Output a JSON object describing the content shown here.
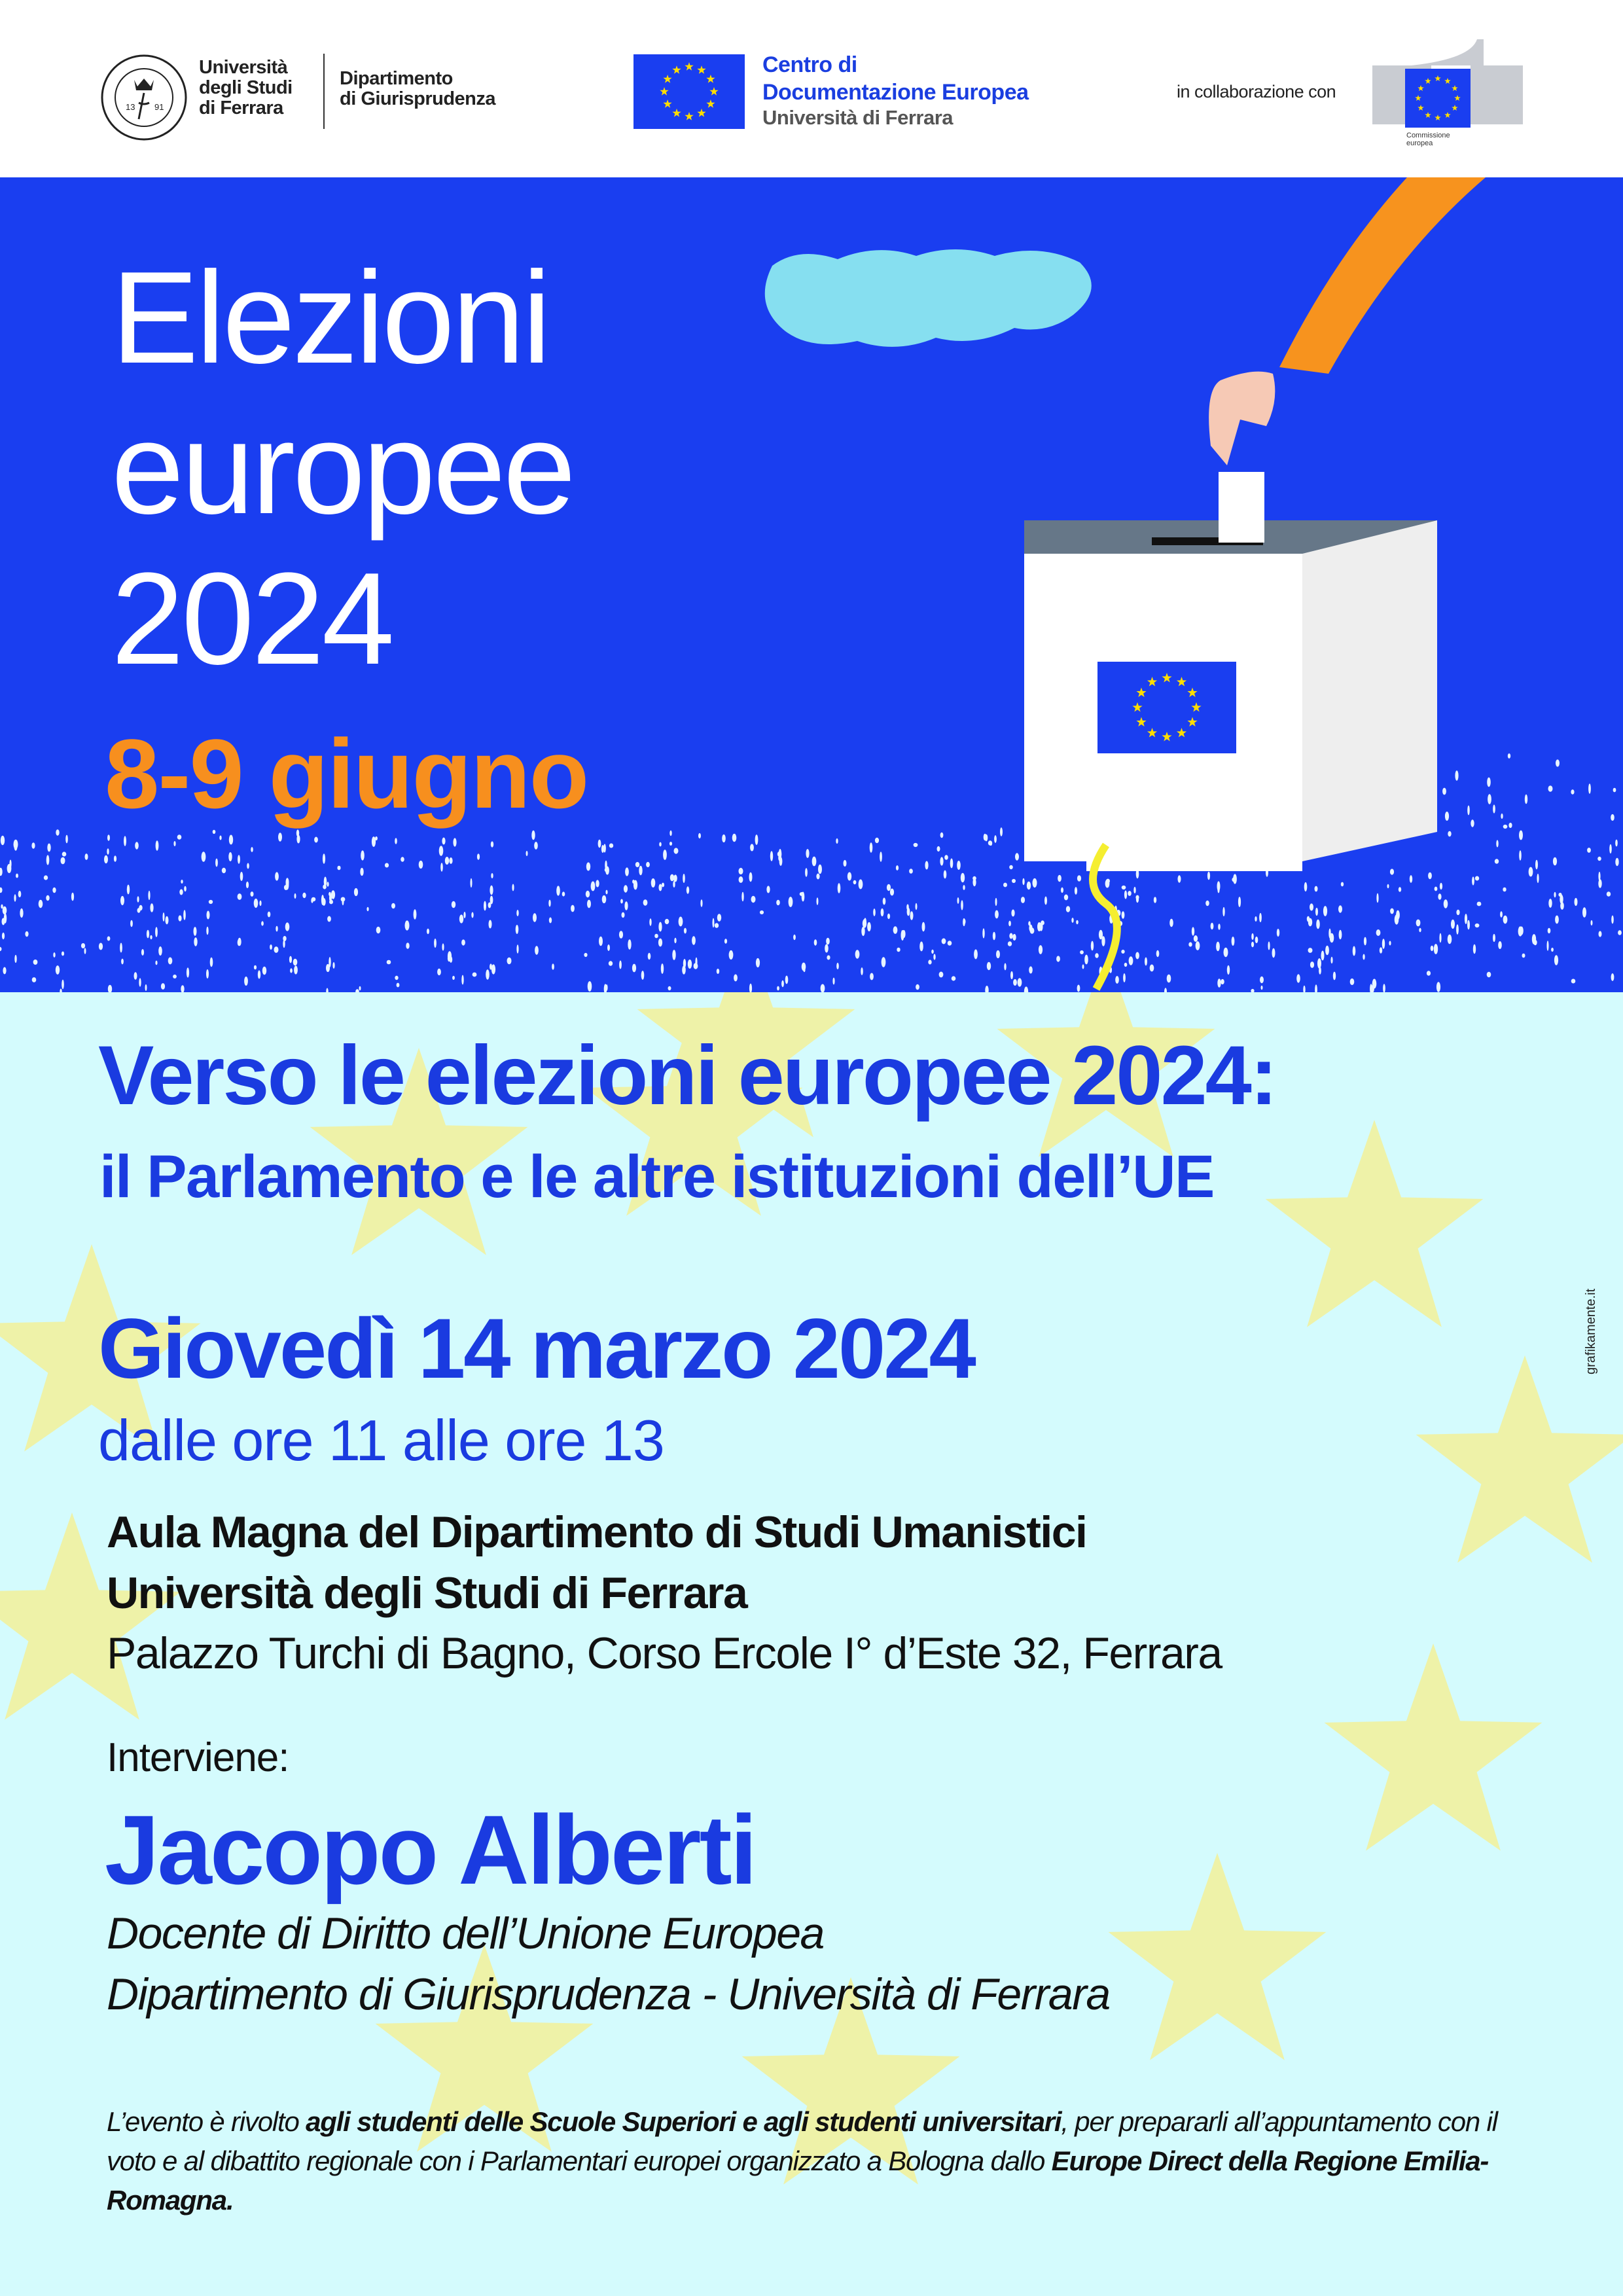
{
  "header": {
    "university": {
      "line1": "Università",
      "line2": "degli Studi",
      "line3": "di Ferrara",
      "seal_text": "FERRARIAE UNIVERSITAS · EX LABORE FRUCTUS · 1391"
    },
    "department": {
      "line1": "Dipartimento",
      "line2": "di Giurisprudenza"
    },
    "cde": {
      "line1": "Centro di",
      "line2": "Documentazione Europea",
      "line3": "Università di Ferrara"
    },
    "collab_label": "in collaborazione con",
    "commission": {
      "line1": "Commissione",
      "line2": "europea"
    }
  },
  "hero": {
    "title_line1": "Elezioni",
    "title_line2": "europee",
    "title_line3": "2024",
    "dates": "8-9 giugno"
  },
  "event": {
    "title": "Verso le elezioni europee 2024:",
    "subtitle": "il Parlamento e le altre istituzioni dell’UE",
    "date": "Giovedì 14 marzo 2024",
    "time": "dalle ore 11 alle ore 13",
    "venue_line1": "Aula Magna del Dipartimento di Studi Umanistici",
    "venue_line2": "Università degli Studi di Ferrara",
    "address": "Palazzo Turchi di Bagno, Corso Ercole I° d’Este 32, Ferrara",
    "speaker_label": "Interviene:",
    "speaker_name": "Jacopo Alberti",
    "speaker_role1": "Docente di Diritto dell’Unione Europea",
    "speaker_role2": "Dipartimento di Giurisprudenza - Università di Ferrara"
  },
  "footer": {
    "part1": "L’evento è rivolto ",
    "part2": "agli studenti delle Scuole Superiori e agli studenti universitari",
    "part3": ", per prepararli all’appuntamento con il voto e al dibattito regionale con i Parlamentari europei organizzato a Bologna dallo ",
    "part4": "Europe Direct della Regione Emilia-Romagna."
  },
  "credit": "grafikamente.it",
  "colors": {
    "band_blue": "#1a3ef0",
    "orange": "#f78f1e",
    "title_blue": "#1a3be0",
    "background": "#d4fbfd",
    "star_yellow": "#eef2a8",
    "eu_star": "#ffdd00"
  }
}
